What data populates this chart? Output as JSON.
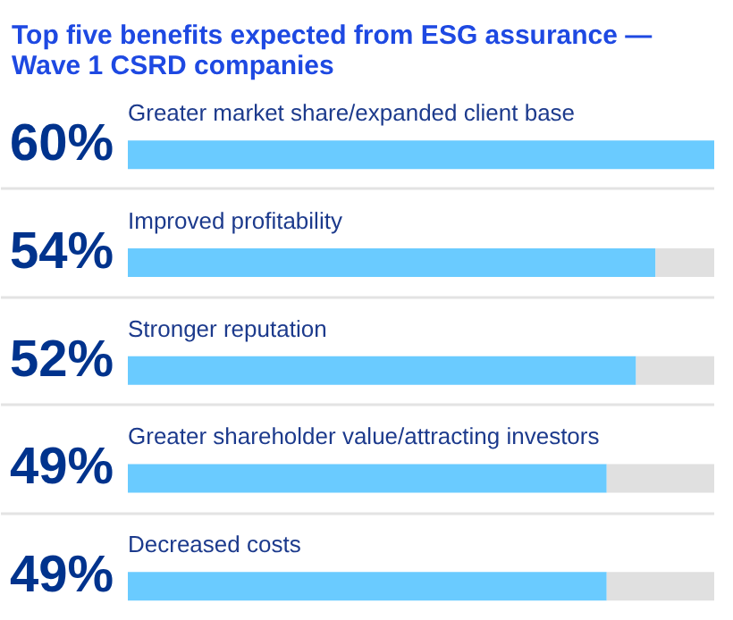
{
  "chart_data": {
    "type": "bar",
    "orientation": "horizontal",
    "stacked": true,
    "title": "Top five benefits expected from ESG assurance — Wave 1 CSRD companies",
    "categories": [
      "Greater market share/expanded client base",
      "Improved profitability",
      "Stronger reputation",
      "Greater shareholder value/attracting investors",
      "Decreased costs"
    ],
    "series": [
      {
        "color": "#6acbff",
        "values": [
          60,
          54,
          52,
          49,
          49
        ],
        "value_labels": [
          "60%",
          "54%",
          "52%",
          "49%",
          "49%"
        ]
      },
      {
        "color": "#e0e0e0",
        "values": [
          null,
          6,
          8,
          11,
          11
        ]
      }
    ],
    "xlim": [
      0,
      60
    ],
    "grid": "y",
    "tick_labels": false
  }
}
